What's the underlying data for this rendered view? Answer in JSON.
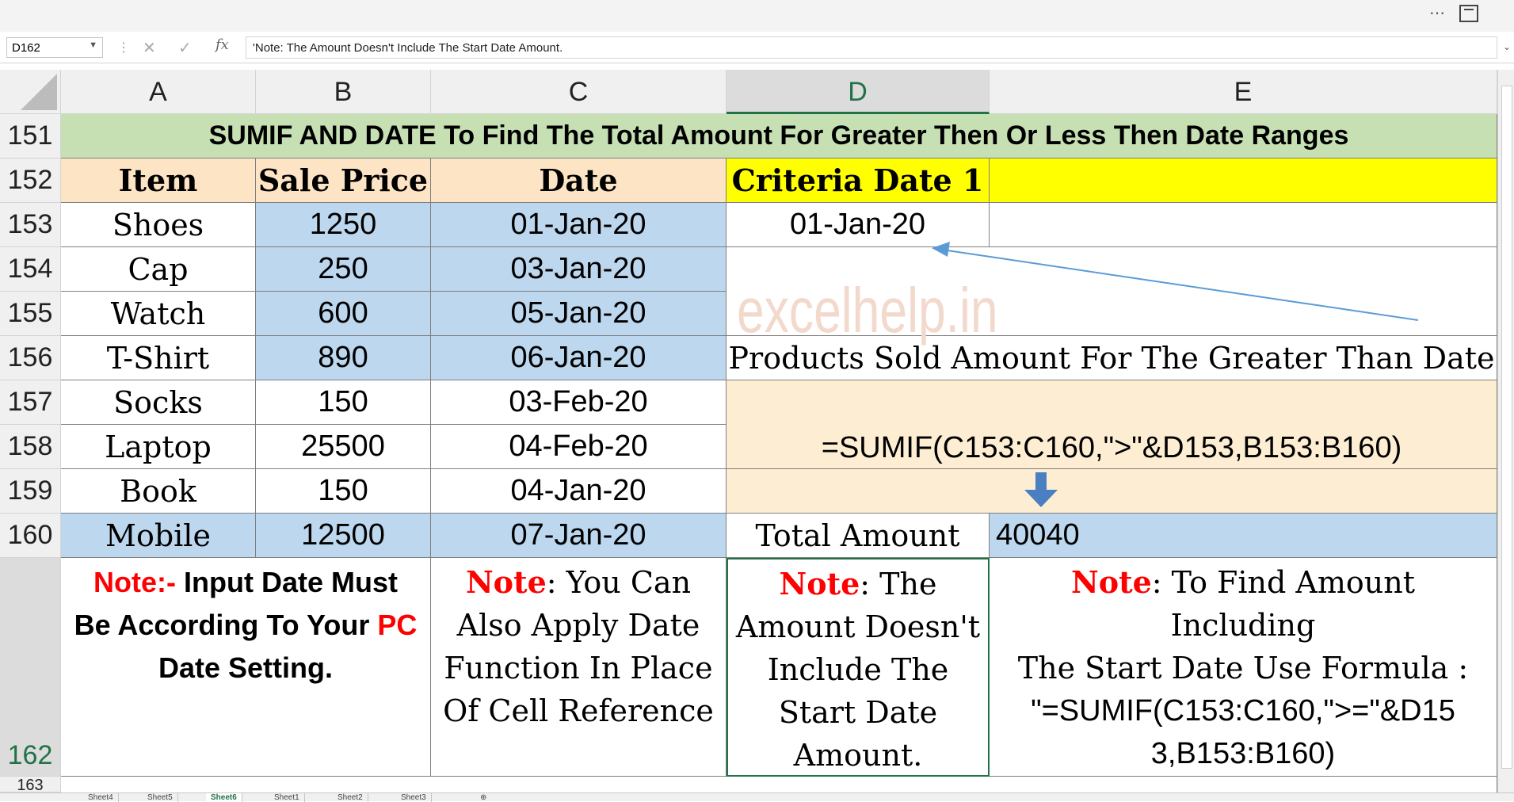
{
  "namebox": {
    "value": "D162"
  },
  "formula": {
    "fx": "fx",
    "content": "'Note: The Amount Doesn't Include The Start Date Amount."
  },
  "columns": [
    "A",
    "B",
    "C",
    "D",
    "E"
  ],
  "rows": {
    "r151": "151",
    "r152": "152",
    "r153": "153",
    "r154": "154",
    "r155": "155",
    "r156": "156",
    "r157": "157",
    "r158": "158",
    "r159": "159",
    "r160": "160",
    "r162": "162",
    "r163": "163"
  },
  "title": "SUMIF AND DATE To Find The Total Amount For Greater Then Or Less Then Date Ranges",
  "headers": {
    "item": "Item",
    "price": "Sale Price",
    "date": "Date",
    "criteria": "Criteria Date 1"
  },
  "table": [
    {
      "item": "Shoes",
      "price": "1250",
      "date": "01-Jan-20"
    },
    {
      "item": "Cap",
      "price": "250",
      "date": "03-Jan-20"
    },
    {
      "item": "Watch",
      "price": "600",
      "date": "05-Jan-20"
    },
    {
      "item": "T-Shirt",
      "price": "890",
      "date": "06-Jan-20"
    },
    {
      "item": "Socks",
      "price": "150",
      "date": "03-Feb-20"
    },
    {
      "item": "Laptop",
      "price": "25500",
      "date": "04-Feb-20"
    },
    {
      "item": "Book",
      "price": "150",
      "date": "04-Jan-20"
    },
    {
      "item": "Mobile",
      "price": "12500",
      "date": "07-Jan-20"
    }
  ],
  "criteria_value": "01-Jan-20",
  "watermark": "excelhelp.in",
  "products_label": "Products Sold Amount For The Greater Than Date",
  "formula_text": "=SUMIF(C153:C160,\">\"&D153,B153:B160)",
  "total_label": "Total Amount",
  "total_value": "40040",
  "notes": {
    "a_prefix": "Note:-",
    "a_text1": " Input Date Must",
    "a_text2": "Be According To Your ",
    "a_pc": "PC",
    "a_text3": "Date Setting.",
    "c_prefix": "Note",
    "c_line1": ": You Can",
    "c_line2": "Also Apply Date",
    "c_line3": "Function In Place",
    "c_line4": "Of Cell Reference",
    "d_prefix": "Note",
    "d_line1": ": The",
    "d_line2": "Amount Doesn't",
    "d_line3": "Include The",
    "d_line4": "Start Date",
    "d_line5": "Amount.",
    "e_prefix": "Note",
    "e_line1": ": To Find Amount Including",
    "e_line2": "The Start Date Use Formula :",
    "e_line3": "\"=SUMIF(C153:C160,\">=\"&D15",
    "e_line4": "3,B153:B160)"
  },
  "sheets": [
    "Sheet4",
    "Sheet5",
    "Sheet6",
    "Sheet1",
    "Sheet2",
    "Sheet3"
  ],
  "active_sheet": "Sheet6",
  "colors": {
    "accent": "#217346",
    "note_red": "#ff0000",
    "arrow": "#5b9bd5"
  }
}
